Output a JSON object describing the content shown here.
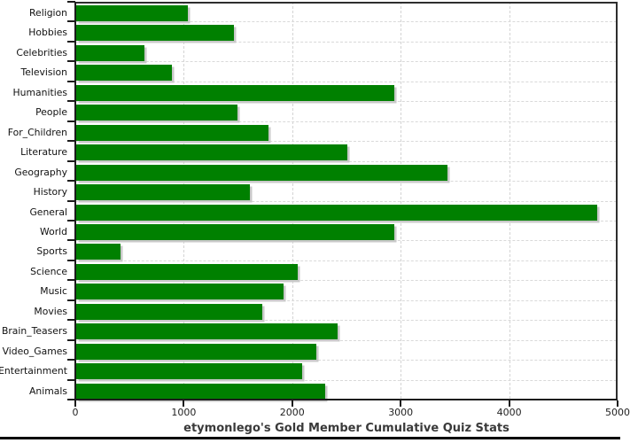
{
  "chart_data": {
    "type": "bar",
    "orientation": "horizontal",
    "title": "etymonlego's Gold Member Cumulative Quiz Stats",
    "categories": [
      "Religion",
      "Hobbies",
      "Celebrities",
      "Television",
      "Humanities",
      "People",
      "For_Children",
      "Literature",
      "Geography",
      "History",
      "General",
      "World",
      "Sports",
      "Science",
      "Music",
      "Movies",
      "Brain_Teasers",
      "Video_Games",
      "Entertainment",
      "Animals"
    ],
    "values": [
      1030,
      1455,
      630,
      880,
      2930,
      1490,
      1775,
      2500,
      3420,
      1605,
      4805,
      2935,
      405,
      2045,
      1910,
      1715,
      2410,
      2215,
      2085,
      2295
    ],
    "xticks": [
      0,
      1000,
      2000,
      3000,
      4000,
      5000
    ],
    "xtick_labels": [
      "0",
      "1000",
      "2000",
      "3000",
      "4000",
      "5000"
    ],
    "xlim": [
      0,
      5000
    ],
    "bar_color": "#008000",
    "shadow_color": "#c9c9c9",
    "grid": true,
    "gridline_color": "#d6d6d6",
    "legend_position": "none"
  }
}
